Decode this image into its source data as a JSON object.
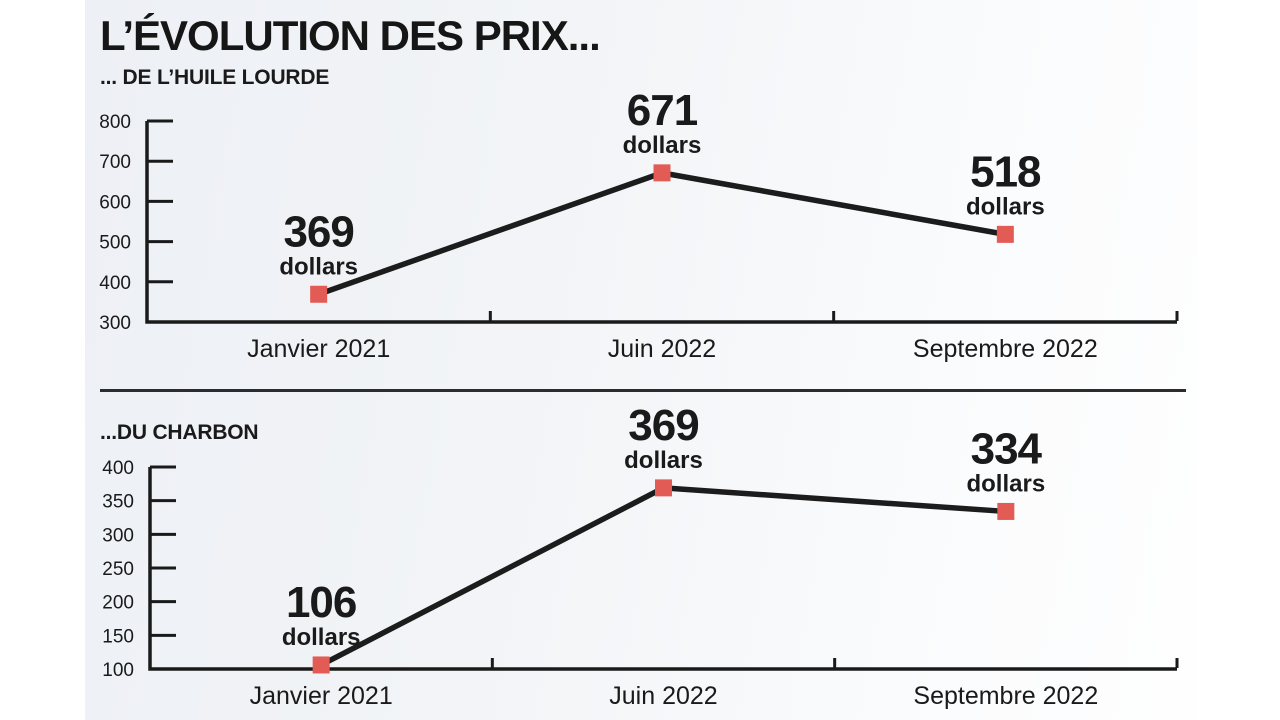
{
  "title": "L’ÉVOLUTION DES PRIX...",
  "colors": {
    "accent": "#e25b55",
    "line": "#1c1c1c",
    "axis": "#1a1a1a",
    "text": "#1a1a1a"
  },
  "chart_data": [
    {
      "type": "line",
      "subtitle": "... DE L’HUILE LOURDE",
      "categories": [
        "Janvier 2021",
        "Juin 2022",
        "Septembre 2022"
      ],
      "values": [
        369,
        671,
        518
      ],
      "unit_label": "dollars",
      "ylim": [
        300,
        800
      ],
      "yticks": [
        800,
        700,
        600,
        500,
        400,
        300
      ],
      "marker": "square",
      "legend": "none",
      "grid": "off"
    },
    {
      "type": "line",
      "subtitle": "...DU CHARBON",
      "categories": [
        "Janvier 2021",
        "Juin 2022",
        "Septembre 2022"
      ],
      "values": [
        106,
        369,
        334
      ],
      "unit_label": "dollars",
      "ylim": [
        100,
        400
      ],
      "yticks": [
        400,
        350,
        300,
        250,
        200,
        150,
        100
      ],
      "marker": "square",
      "legend": "none",
      "grid": "off"
    }
  ]
}
